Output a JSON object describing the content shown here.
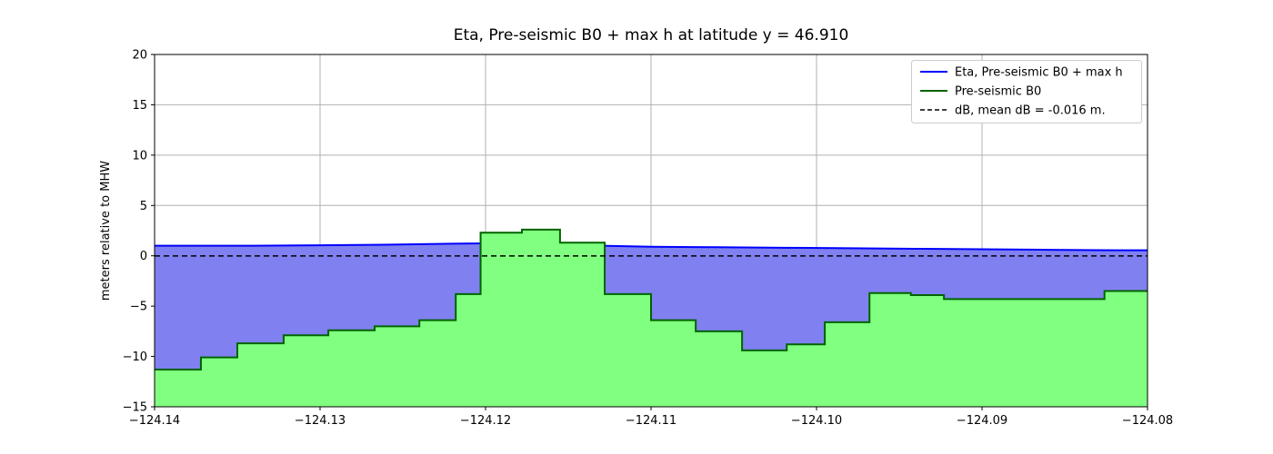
{
  "figure": {
    "background": "#ffffff",
    "frame_color": "#000000"
  },
  "chart_data": {
    "type": "area",
    "title": "Eta, Pre-seismic B0 + max h at latitude y = 46.910",
    "xlabel": "",
    "ylabel": "meters relative to MHW",
    "xlim": [
      -124.14,
      -124.08
    ],
    "ylim": [
      -15,
      20
    ],
    "x_ticks": [
      -124.14,
      -124.13,
      -124.12,
      -124.11,
      -124.1,
      -124.09,
      -124.08
    ],
    "x_tick_labels": [
      "−124.14",
      "−124.13",
      "−124.12",
      "−124.11",
      "−124.10",
      "−124.09",
      "−124.08"
    ],
    "y_ticks": [
      -15,
      -10,
      -5,
      0,
      5,
      10,
      15,
      20
    ],
    "y_tick_labels": [
      "−15",
      "−10",
      "−5",
      "0",
      "5",
      "10",
      "15",
      "20"
    ],
    "grid": true,
    "grid_color": "#b0b0b0",
    "legend_position": "upper right",
    "series": [
      {
        "name": "Eta, Pre-seismic B0 + max h",
        "type": "line",
        "color": "#0000ff",
        "fill_color": "#8080f0",
        "x": [
          -124.14,
          -124.134,
          -124.13,
          -124.126,
          -124.122,
          -124.119,
          -124.116,
          -124.113,
          -124.11,
          -124.106,
          -124.102,
          -124.098,
          -124.094,
          -124.09,
          -124.086,
          -124.082,
          -124.08
        ],
        "y": [
          1.0,
          1.0,
          1.05,
          1.1,
          1.2,
          1.25,
          1.2,
          1.0,
          0.9,
          0.85,
          0.8,
          0.75,
          0.7,
          0.65,
          0.6,
          0.55,
          0.55
        ]
      },
      {
        "name": "Pre-seismic B0",
        "type": "step",
        "color": "#006400",
        "fill_color": "#80ff80",
        "x_edges": [
          -124.14,
          -124.1372,
          -124.135,
          -124.1322,
          -124.1295,
          -124.1267,
          -124.124,
          -124.1218,
          -124.1203,
          -124.1178,
          -124.1155,
          -124.1128,
          -124.11,
          -124.1073,
          -124.1045,
          -124.1018,
          -124.0995,
          -124.0968,
          -124.0943,
          -124.0923,
          -124.0826,
          -124.08
        ],
        "values": [
          -11.3,
          -10.1,
          -8.7,
          -7.9,
          -7.4,
          -7.0,
          -6.4,
          -3.8,
          2.3,
          2.6,
          1.3,
          -3.8,
          -6.4,
          -7.5,
          -9.4,
          -8.8,
          -6.6,
          -3.7,
          -3.9,
          -4.3,
          -3.5
        ]
      },
      {
        "name": "dB, mean dB = -0.016 m.",
        "type": "hline",
        "style": "dashed",
        "color": "#000000",
        "value": -0.016
      }
    ]
  }
}
